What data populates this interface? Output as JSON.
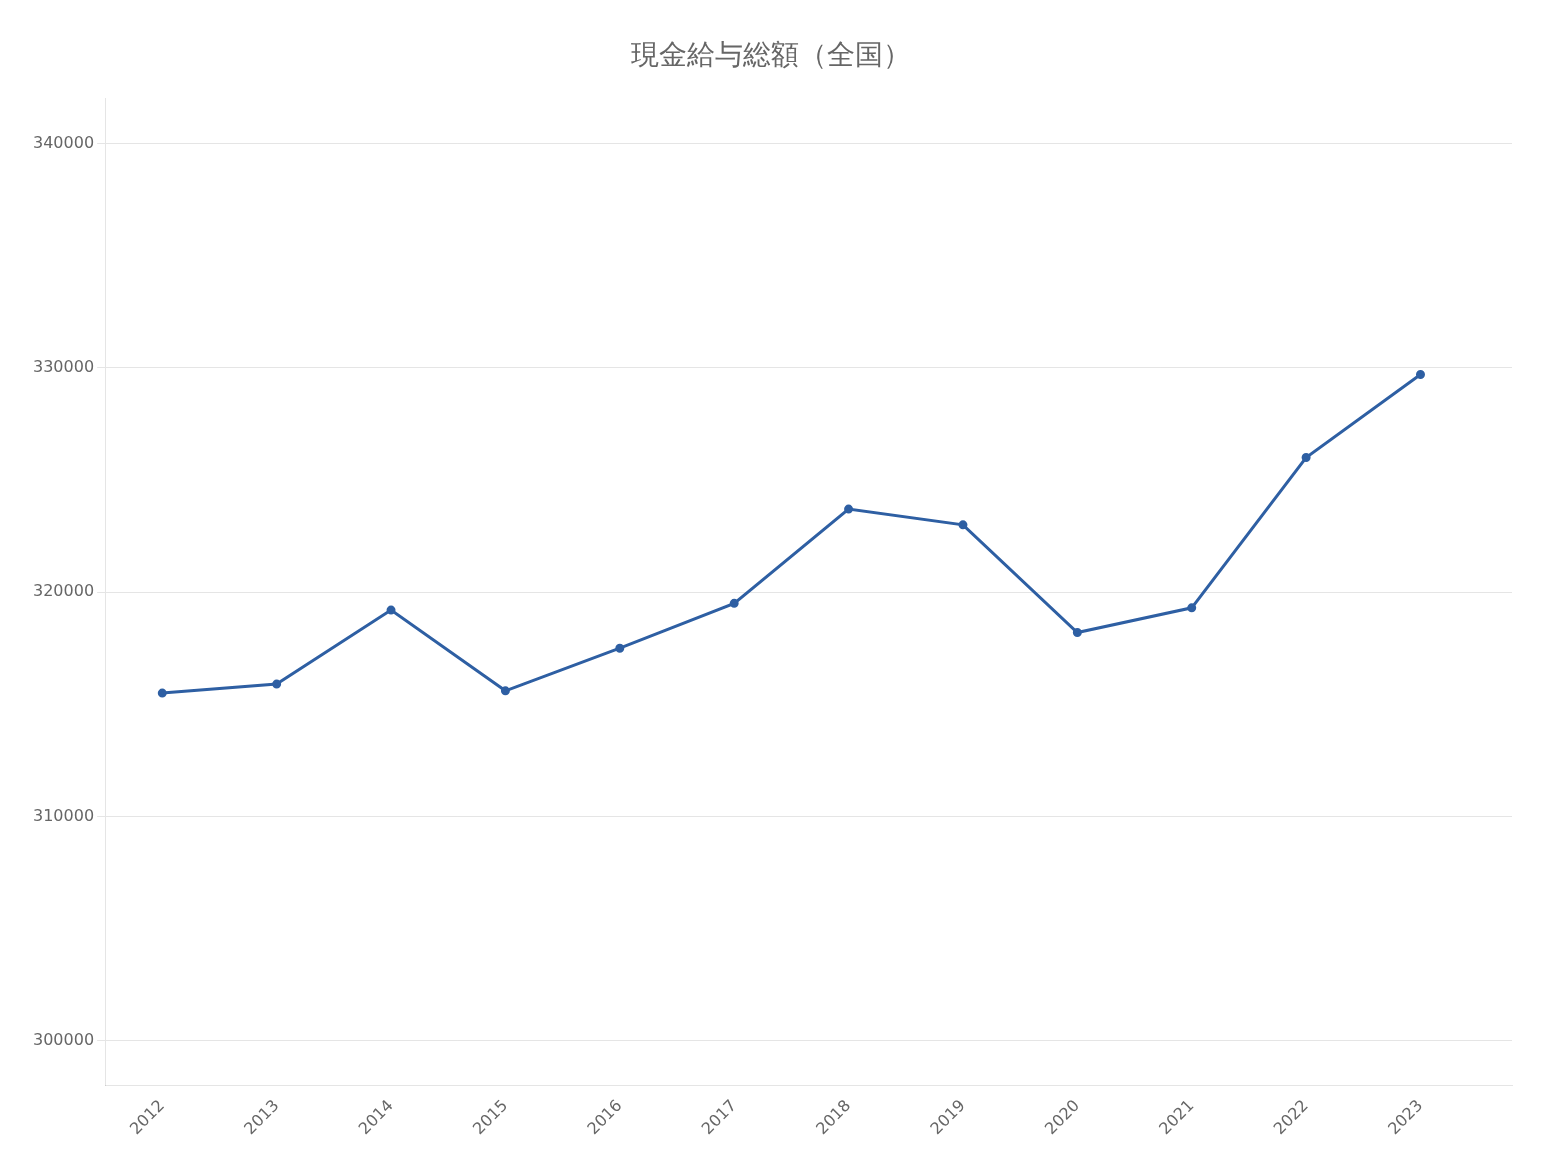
{
  "chart_data": {
    "type": "line",
    "title": "現金給与総額（全国）",
    "x": [
      2012,
      2013,
      2014,
      2015,
      2016,
      2017,
      2018,
      2019,
      2020,
      2021,
      2022,
      2023
    ],
    "values": [
      315500,
      315900,
      319200,
      315600,
      317500,
      319500,
      323700,
      323000,
      318200,
      319300,
      326000,
      329700
    ],
    "color": "#2E5FA3",
    "xlim": [
      2011.5,
      2023.8
    ],
    "xticks": [
      2012,
      2013,
      2014,
      2015,
      2016,
      2017,
      2018,
      2019,
      2020,
      2021,
      2022,
      2023
    ],
    "ylim": [
      298000,
      342000
    ],
    "yticks": [
      300000,
      310000,
      320000,
      330000,
      340000
    ],
    "grid": true
  }
}
